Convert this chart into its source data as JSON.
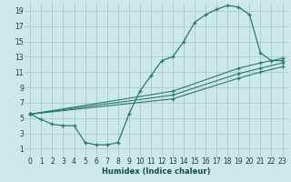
{
  "xlabel": "Humidex (Indice chaleur)",
  "bg_color": "#cce8e8",
  "grid_color": "#aacece",
  "line_color": "#2a7a6a",
  "xlim": [
    -0.5,
    23.5
  ],
  "ylim": [
    0,
    20
  ],
  "xticks": [
    0,
    1,
    2,
    3,
    4,
    5,
    6,
    7,
    8,
    9,
    10,
    11,
    12,
    13,
    14,
    15,
    16,
    17,
    18,
    19,
    20,
    21,
    22,
    23
  ],
  "yticks": [
    1,
    3,
    5,
    7,
    9,
    11,
    13,
    15,
    17,
    19
  ],
  "curve1_x": [
    0,
    1,
    2,
    3,
    4,
    5,
    6,
    7,
    8,
    9,
    10,
    11,
    12,
    13,
    14,
    15,
    16,
    17,
    18,
    19,
    20,
    21,
    22,
    23
  ],
  "curve1_y": [
    5.5,
    4.8,
    4.2,
    4.0,
    4.0,
    1.8,
    1.5,
    1.5,
    1.8,
    5.5,
    8.5,
    10.5,
    12.5,
    13.0,
    15.0,
    17.5,
    18.5,
    19.2,
    19.7,
    19.5,
    18.5,
    13.5,
    12.5,
    12.5
  ],
  "line1_x": [
    0,
    13,
    19,
    21,
    23
  ],
  "line1_y": [
    5.5,
    8.5,
    11.5,
    12.2,
    12.8
  ],
  "line2_x": [
    0,
    13,
    19,
    21,
    23
  ],
  "line2_y": [
    5.5,
    8.0,
    10.8,
    11.5,
    12.2
  ],
  "line3_x": [
    0,
    13,
    19,
    21,
    23
  ],
  "line3_y": [
    5.5,
    7.5,
    10.2,
    11.0,
    11.7
  ],
  "tick_fontsize": 5.5,
  "xlabel_fontsize": 6.0
}
